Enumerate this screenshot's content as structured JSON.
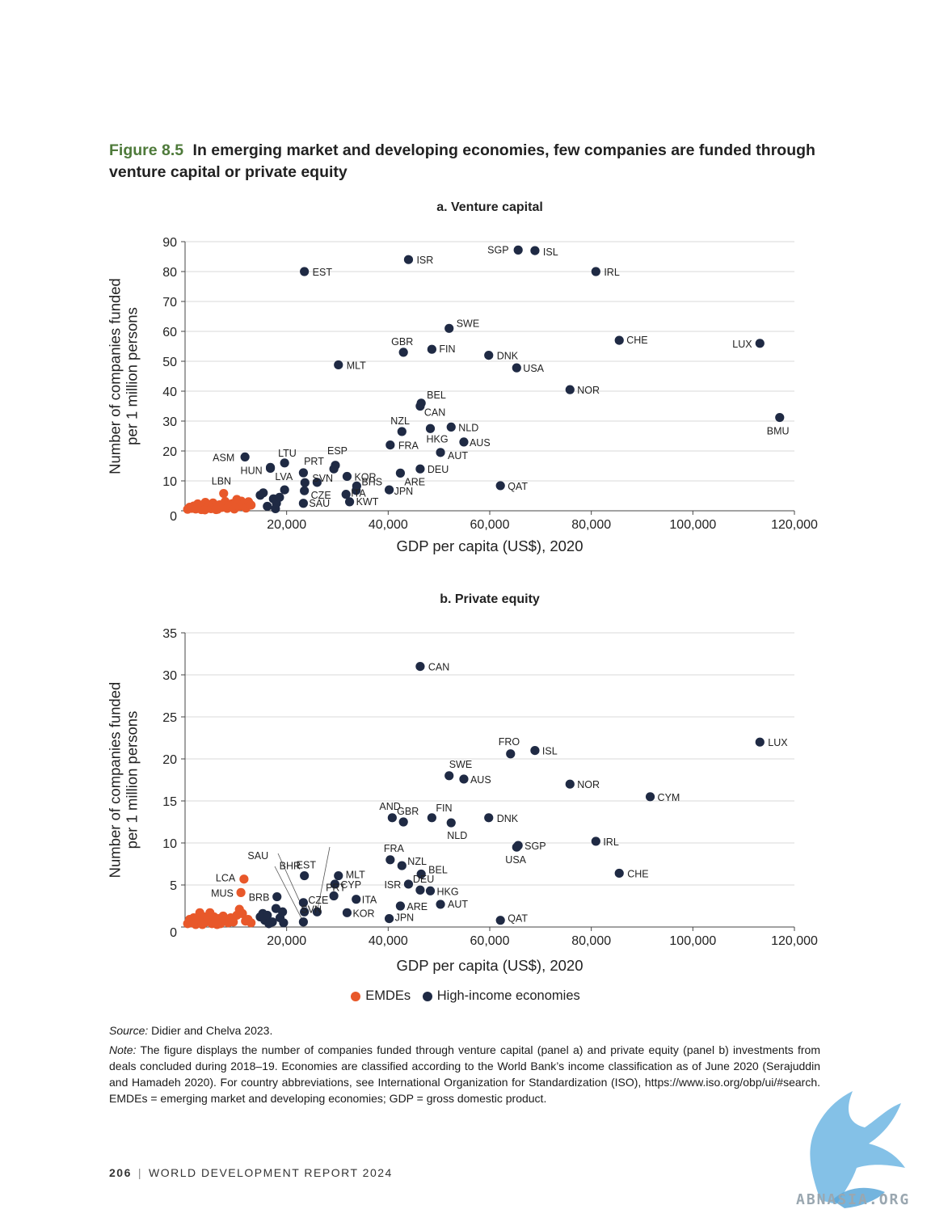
{
  "figure": {
    "number": "Figure 8.5",
    "title": "In emerging market and developing economies, few companies are funded through venture capital or private equity"
  },
  "colors": {
    "emde": "#e8582a",
    "high_income": "#1f2a44",
    "grid": "#d9d9d9"
  },
  "legend": {
    "emde": "EMDEs",
    "high_income": "High-income economies"
  },
  "chart_data": [
    {
      "type": "scatter",
      "title": "a. Venture capital",
      "xlabel": "GDP per capita (US$), 2020",
      "ylabel": "Number of companies funded per 1 million persons",
      "xlim": [
        0,
        120000
      ],
      "ylim": [
        0,
        90
      ],
      "xticks": [
        20000,
        40000,
        60000,
        80000,
        100000,
        120000
      ],
      "xtick_labels": [
        "20,000",
        "40,000",
        "60,000",
        "80,000",
        "100,000",
        "120,000"
      ],
      "yticks": [
        0,
        10,
        20,
        30,
        40,
        50,
        60,
        70,
        80,
        90
      ],
      "ytick_labels": [
        "0",
        "10",
        "20",
        "30",
        "40",
        "50",
        "60",
        "70",
        "80",
        "90"
      ],
      "grid": "horizontal",
      "labeled_points": [
        {
          "label": "SGP",
          "x": 65600,
          "y": 87.2,
          "group": "hi"
        },
        {
          "label": "ISL",
          "x": 68900,
          "y": 87.0,
          "group": "hi"
        },
        {
          "label": "ISR",
          "x": 44000,
          "y": 84.0,
          "group": "hi"
        },
        {
          "label": "EST",
          "x": 23500,
          "y": 80.0,
          "group": "hi"
        },
        {
          "label": "IRL",
          "x": 80900,
          "y": 80.0,
          "group": "hi"
        },
        {
          "label": "SWE",
          "x": 52000,
          "y": 61.0,
          "group": "hi"
        },
        {
          "label": "CHE",
          "x": 85500,
          "y": 57.0,
          "group": "hi"
        },
        {
          "label": "LUX",
          "x": 113200,
          "y": 56.0,
          "group": "hi"
        },
        {
          "label": "FIN",
          "x": 48600,
          "y": 54.0,
          "group": "hi"
        },
        {
          "label": "GBR",
          "x": 43000,
          "y": 53.0,
          "group": "hi"
        },
        {
          "label": "DNK",
          "x": 59800,
          "y": 52.0,
          "group": "hi"
        },
        {
          "label": "MLT",
          "x": 30200,
          "y": 48.8,
          "group": "hi"
        },
        {
          "label": "USA",
          "x": 65300,
          "y": 47.8,
          "group": "hi"
        },
        {
          "label": "NOR",
          "x": 75800,
          "y": 40.5,
          "group": "hi"
        },
        {
          "label": "BEL",
          "x": 46500,
          "y": 36.0,
          "group": "hi"
        },
        {
          "label": "CAN",
          "x": 46300,
          "y": 35.0,
          "group": "hi"
        },
        {
          "label": "BMU",
          "x": 117100,
          "y": 31.2,
          "group": "hi"
        },
        {
          "label": "NLD",
          "x": 52400,
          "y": 28.0,
          "group": "hi"
        },
        {
          "label": "HKG",
          "x": 48300,
          "y": 27.5,
          "group": "hi"
        },
        {
          "label": "NZL",
          "x": 42700,
          "y": 26.5,
          "group": "hi"
        },
        {
          "label": "AUS",
          "x": 54900,
          "y": 23.0,
          "group": "hi"
        },
        {
          "label": "FRA",
          "x": 40400,
          "y": 22.0,
          "group": "hi"
        },
        {
          "label": "AUT",
          "x": 50300,
          "y": 19.5,
          "group": "hi"
        },
        {
          "label": "ASM",
          "x": 11800,
          "y": 18.0,
          "group": "hi"
        },
        {
          "label": "LTU",
          "x": 19600,
          "y": 16.0,
          "group": "hi"
        },
        {
          "label": "ESP",
          "x": 29600,
          "y": 15.2,
          "group": "hi"
        },
        {
          "label": "HUN",
          "x": 16800,
          "y": 14.2,
          "group": "hi"
        },
        {
          "label": "PRT",
          "x": 29300,
          "y": 14.0,
          "group": "hi"
        },
        {
          "label": "DEU",
          "x": 46300,
          "y": 14.0,
          "group": "hi"
        },
        {
          "label": "LVA",
          "x": 23300,
          "y": 12.7,
          "group": "hi"
        },
        {
          "label": "ARE",
          "x": 42400,
          "y": 12.6,
          "group": "hi"
        },
        {
          "label": "KOR",
          "x": 31900,
          "y": 11.5,
          "group": "hi"
        },
        {
          "label": "SVN",
          "x": 26000,
          "y": 9.5,
          "group": "hi"
        },
        {
          "label": "BHS",
          "x": 33800,
          "y": 8.3,
          "group": "hi"
        },
        {
          "label": "QAT",
          "x": 62100,
          "y": 8.4,
          "group": "hi"
        },
        {
          "label": "JPN",
          "x": 40200,
          "y": 7.0,
          "group": "hi"
        },
        {
          "label": "CZE",
          "x": 23500,
          "y": 6.7,
          "group": "hi"
        },
        {
          "label": "ITA",
          "x": 31700,
          "y": 5.5,
          "group": "hi"
        },
        {
          "label": "KWT",
          "x": 32400,
          "y": 3.0,
          "group": "hi"
        },
        {
          "label": "SAU",
          "x": 23300,
          "y": 2.5,
          "group": "hi"
        },
        {
          "label": "LBN",
          "x": 7600,
          "y": 5.8,
          "group": "emde"
        }
      ],
      "unlabeled_high_income": [
        [
          14800,
          5.2
        ],
        [
          15400,
          6.0
        ],
        [
          16200,
          1.5
        ],
        [
          17400,
          4.0
        ],
        [
          18000,
          2.5
        ],
        [
          18600,
          4.5
        ],
        [
          19600,
          7.0
        ],
        [
          17800,
          0.7
        ],
        [
          23600,
          9.4
        ],
        [
          33700,
          6.8
        ],
        [
          16800,
          14.5
        ]
      ],
      "emde_points": [
        [
          500,
          0.5
        ],
        [
          900,
          1.2
        ],
        [
          1300,
          0.8
        ],
        [
          1700,
          1.6
        ],
        [
          2100,
          0.6
        ],
        [
          2500,
          2.3
        ],
        [
          2800,
          1.0
        ],
        [
          3200,
          0.4
        ],
        [
          3600,
          1.9
        ],
        [
          4000,
          2.8
        ],
        [
          4300,
          0.9
        ],
        [
          4700,
          1.5
        ],
        [
          5100,
          0.7
        ],
        [
          5500,
          2.6
        ],
        [
          5900,
          1.2
        ],
        [
          6400,
          0.5
        ],
        [
          6800,
          2.0
        ],
        [
          7200,
          1.1
        ],
        [
          7900,
          3.1
        ],
        [
          8300,
          0.8
        ],
        [
          8800,
          1.8
        ],
        [
          9300,
          2.4
        ],
        [
          9700,
          0.6
        ],
        [
          10200,
          3.8
        ],
        [
          10600,
          1.4
        ],
        [
          11100,
          3.2
        ],
        [
          11500,
          2.2
        ],
        [
          12000,
          0.9
        ],
        [
          12500,
          3.0
        ],
        [
          13000,
          1.9
        ],
        [
          3900,
          0.3
        ],
        [
          6100,
          0.4
        ]
      ]
    },
    {
      "type": "scatter",
      "title": "b. Private equity",
      "xlabel": "GDP per capita (US$), 2020",
      "ylabel": "Number of companies funded per 1 million persons",
      "xlim": [
        0,
        120000
      ],
      "ylim": [
        0,
        35
      ],
      "xticks": [
        20000,
        40000,
        60000,
        80000,
        100000,
        120000
      ],
      "xtick_labels": [
        "20,000",
        "40,000",
        "60,000",
        "80,000",
        "100,000",
        "120,000"
      ],
      "yticks": [
        0,
        5,
        10,
        15,
        20,
        25,
        30,
        35
      ],
      "ytick_labels": [
        "0",
        "5",
        "10",
        "15",
        "20",
        "25",
        "30",
        "35"
      ],
      "grid": "horizontal",
      "labeled_points": [
        {
          "label": "CAN",
          "x": 46300,
          "y": 31.0,
          "group": "hi"
        },
        {
          "label": "LUX",
          "x": 113200,
          "y": 22.0,
          "group": "hi"
        },
        {
          "label": "ISL",
          "x": 68900,
          "y": 21.0,
          "group": "hi"
        },
        {
          "label": "FRO",
          "x": 64100,
          "y": 20.6,
          "group": "hi"
        },
        {
          "label": "SWE",
          "x": 52000,
          "y": 18.0,
          "group": "hi"
        },
        {
          "label": "AUS",
          "x": 54900,
          "y": 17.6,
          "group": "hi"
        },
        {
          "label": "NOR",
          "x": 75800,
          "y": 17.0,
          "group": "hi"
        },
        {
          "label": "CYM",
          "x": 91600,
          "y": 15.5,
          "group": "hi"
        },
        {
          "label": "AND",
          "x": 40800,
          "y": 13.0,
          "group": "hi"
        },
        {
          "label": "FIN",
          "x": 48600,
          "y": 13.0,
          "group": "hi"
        },
        {
          "label": "DNK",
          "x": 59800,
          "y": 13.0,
          "group": "hi"
        },
        {
          "label": "GBR",
          "x": 43000,
          "y": 12.5,
          "group": "hi"
        },
        {
          "label": "NLD",
          "x": 52400,
          "y": 12.4,
          "group": "hi"
        },
        {
          "label": "IRL",
          "x": 80900,
          "y": 10.2,
          "group": "hi"
        },
        {
          "label": "SGP",
          "x": 65600,
          "y": 9.7,
          "group": "hi"
        },
        {
          "label": "USA",
          "x": 65300,
          "y": 9.5,
          "group": "hi"
        },
        {
          "label": "FRA",
          "x": 40400,
          "y": 8.0,
          "group": "hi"
        },
        {
          "label": "NZL",
          "x": 42700,
          "y": 7.3,
          "group": "hi"
        },
        {
          "label": "CHE",
          "x": 85500,
          "y": 6.4,
          "group": "hi"
        },
        {
          "label": "BEL",
          "x": 46500,
          "y": 6.3,
          "group": "hi"
        },
        {
          "label": "EST",
          "x": 23500,
          "y": 6.1,
          "group": "hi"
        },
        {
          "label": "MLT",
          "x": 30200,
          "y": 6.1,
          "group": "hi"
        },
        {
          "label": "CYP",
          "x": 29500,
          "y": 5.1,
          "group": "hi"
        },
        {
          "label": "ISR",
          "x": 44000,
          "y": 5.1,
          "group": "hi"
        },
        {
          "label": "DEU",
          "x": 46300,
          "y": 4.4,
          "group": "hi"
        },
        {
          "label": "HKG",
          "x": 48300,
          "y": 4.3,
          "group": "hi"
        },
        {
          "label": "BRB",
          "x": 18100,
          "y": 3.6,
          "group": "hi"
        },
        {
          "label": "PRT",
          "x": 29300,
          "y": 3.7,
          "group": "hi"
        },
        {
          "label": "ITA",
          "x": 33700,
          "y": 3.3,
          "group": "hi"
        },
        {
          "label": "CZE",
          "x": 23300,
          "y": 2.9,
          "group": "hi"
        },
        {
          "label": "AUT",
          "x": 50300,
          "y": 2.7,
          "group": "hi"
        },
        {
          "label": "ARE",
          "x": 42400,
          "y": 2.5,
          "group": "hi"
        },
        {
          "label": "BHR",
          "x": 23500,
          "y": 1.8,
          "group": "hi"
        },
        {
          "label": "SVN",
          "x": 26000,
          "y": 1.8,
          "group": "hi"
        },
        {
          "label": "KOR",
          "x": 31900,
          "y": 1.7,
          "group": "hi"
        },
        {
          "label": "JPN",
          "x": 40200,
          "y": 1.0,
          "group": "hi"
        },
        {
          "label": "QAT",
          "x": 62100,
          "y": 0.8,
          "group": "hi"
        },
        {
          "label": "SAU",
          "x": 23300,
          "y": 0.6,
          "group": "hi"
        },
        {
          "label": "LCA",
          "x": 11600,
          "y": 5.7,
          "group": "emde"
        },
        {
          "label": "MUS",
          "x": 11000,
          "y": 4.1,
          "group": "emde"
        }
      ],
      "unlabeled_high_income": [
        [
          14800,
          1.2
        ],
        [
          15300,
          1.6
        ],
        [
          15700,
          0.8
        ],
        [
          16200,
          1.4
        ],
        [
          17200,
          0.6
        ],
        [
          17900,
          2.2
        ],
        [
          18700,
          1.1
        ],
        [
          19200,
          1.8
        ],
        [
          19400,
          0.5
        ],
        [
          16500,
          0.4
        ]
      ],
      "emde_points": [
        [
          500,
          0.4
        ],
        [
          900,
          0.9
        ],
        [
          1300,
          0.5
        ],
        [
          1700,
          1.1
        ],
        [
          2100,
          0.3
        ],
        [
          2500,
          0.8
        ],
        [
          2900,
          1.7
        ],
        [
          3300,
          0.5
        ],
        [
          3700,
          1.2
        ],
        [
          4100,
          0.6
        ],
        [
          4500,
          1.0
        ],
        [
          4900,
          1.7
        ],
        [
          5300,
          0.4
        ],
        [
          5700,
          1.2
        ],
        [
          6100,
          0.7
        ],
        [
          6600,
          1.0
        ],
        [
          7000,
          0.4
        ],
        [
          7500,
          1.3
        ],
        [
          8000,
          0.8
        ],
        [
          8500,
          0.5
        ],
        [
          9000,
          1.1
        ],
        [
          9500,
          0.6
        ],
        [
          10200,
          1.4
        ],
        [
          10700,
          2.1
        ],
        [
          11300,
          1.6
        ],
        [
          11900,
          0.7
        ],
        [
          12400,
          0.9
        ],
        [
          13000,
          0.5
        ],
        [
          3400,
          0.3
        ],
        [
          6300,
          0.3
        ]
      ]
    }
  ],
  "source": {
    "label": "Source:",
    "text": " Didier and Chelva 2023."
  },
  "note": {
    "label": "Note:",
    "text": " The figure displays the number of companies funded through venture capital (panel a) and private equity (panel b) investments from deals concluded during 2018–19. Economies are classified according to the World Bank’s income classification as of June 2020 (Serajuddin and Hamadeh 2020). For country abbreviations, see International Organization for Standardization (ISO), https://www.iso.org/obp/ui/#search. EMDEs = emerging market and developing economies; GDP = gross domestic product."
  },
  "footer": {
    "page_number": "206",
    "report_title": "WORLD DEVELOPMENT REPORT 2024"
  },
  "watermark": {
    "text": "ABNASIA.ORG",
    "icon": "winged-horse-logo-icon"
  }
}
